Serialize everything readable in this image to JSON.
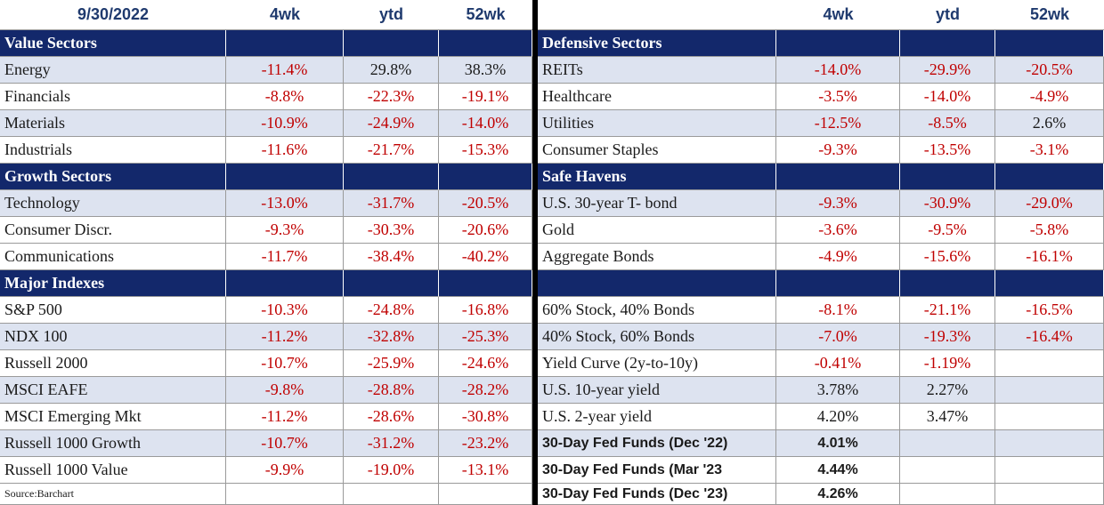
{
  "header": {
    "date": "9/30/2022",
    "left_cols": [
      "4wk",
      "ytd",
      "52wk"
    ],
    "right_cols": [
      "4wk",
      "ytd",
      "52wk"
    ]
  },
  "left": {
    "sections": [
      {
        "title": "Value Sectors",
        "rows": [
          {
            "label": "Energy",
            "wk4": "-11.4%",
            "ytd": "29.8%",
            "wk52": "38.3%"
          },
          {
            "label": "Financials",
            "wk4": "-8.8%",
            "ytd": "-22.3%",
            "wk52": "-19.1%"
          },
          {
            "label": "Materials",
            "wk4": "-10.9%",
            "ytd": "-24.9%",
            "wk52": "-14.0%"
          },
          {
            "label": "Industrials",
            "wk4": "-11.6%",
            "ytd": "-21.7%",
            "wk52": "-15.3%"
          }
        ]
      },
      {
        "title": "Growth Sectors",
        "rows": [
          {
            "label": "Technology",
            "wk4": "-13.0%",
            "ytd": "-31.7%",
            "wk52": "-20.5%"
          },
          {
            "label": "Consumer Discr.",
            "wk4": "-9.3%",
            "ytd": "-30.3%",
            "wk52": "-20.6%"
          },
          {
            "label": "Communications",
            "wk4": "-11.7%",
            "ytd": "-38.4%",
            "wk52": "-40.2%"
          }
        ]
      },
      {
        "title": "Major Indexes",
        "rows": [
          {
            "label": "S&P 500",
            "wk4": "-10.3%",
            "ytd": "-24.8%",
            "wk52": "-16.8%"
          },
          {
            "label": "NDX 100",
            "wk4": "-11.2%",
            "ytd": "-32.8%",
            "wk52": "-25.3%"
          },
          {
            "label": "Russell 2000",
            "wk4": "-10.7%",
            "ytd": "-25.9%",
            "wk52": "-24.6%"
          },
          {
            "label": "MSCI EAFE",
            "wk4": "-9.8%",
            "ytd": "-28.8%",
            "wk52": "-28.2%"
          },
          {
            "label": "MSCI Emerging Mkt",
            "wk4": "-11.2%",
            "ytd": "-28.6%",
            "wk52": "-30.8%"
          },
          {
            "label": "Russell 1000 Growth",
            "wk4": "-10.7%",
            "ytd": "-31.2%",
            "wk52": "-23.2%"
          },
          {
            "label": "Russell 1000 Value",
            "wk4": "-9.9%",
            "ytd": "-19.0%",
            "wk52": "-13.1%"
          }
        ]
      }
    ],
    "source": "Source:Barchart"
  },
  "right": {
    "sections": [
      {
        "title": "Defensive Sectors",
        "rows": [
          {
            "label": "REITs",
            "wk4": "-14.0%",
            "ytd": "-29.9%",
            "wk52": "-20.5%"
          },
          {
            "label": "Healthcare",
            "wk4": "-3.5%",
            "ytd": "-14.0%",
            "wk52": "-4.9%"
          },
          {
            "label": "Utilities",
            "wk4": "-12.5%",
            "ytd": "-8.5%",
            "wk52": "2.6%"
          },
          {
            "label": "Consumer Staples",
            "wk4": "-9.3%",
            "ytd": "-13.5%",
            "wk52": "-3.1%"
          }
        ]
      },
      {
        "title": "Safe Havens",
        "rows": [
          {
            "label": "U.S. 30-year T- bond",
            "wk4": "-9.3%",
            "ytd": "-30.9%",
            "wk52": "-29.0%"
          },
          {
            "label": "Gold",
            "wk4": "-3.6%",
            "ytd": "-9.5%",
            "wk52": "-5.8%"
          },
          {
            "label": "Aggregate Bonds",
            "wk4": "-4.9%",
            "ytd": "-15.6%",
            "wk52": "-16.1%"
          }
        ]
      },
      {
        "title": "",
        "rows": [
          {
            "label": "60% Stock, 40% Bonds",
            "wk4": "-8.1%",
            "ytd": "-21.1%",
            "wk52": "-16.5%"
          },
          {
            "label": "40% Stock, 60% Bonds",
            "wk4": "-7.0%",
            "ytd": "-19.3%",
            "wk52": "-16.4%"
          },
          {
            "label": "Yield Curve (2y-to-10y)",
            "wk4": "-0.41%",
            "ytd": "-1.19%",
            "wk52": ""
          },
          {
            "label": "U.S. 10-year yield",
            "wk4": "3.78%",
            "ytd": "2.27%",
            "wk52": ""
          },
          {
            "label": "U.S. 2-year yield",
            "wk4": "4.20%",
            "ytd": "3.47%",
            "wk52": ""
          },
          {
            "label": "30-Day Fed Funds (Dec '22)",
            "wk4": "4.01%",
            "ytd": "",
            "wk52": ""
          },
          {
            "label": "30-Day Fed Funds (Mar '23",
            "wk4": "4.44%",
            "ytd": "",
            "wk52": ""
          },
          {
            "label": "30-Day Fed Funds (Dec '23)",
            "wk4": "4.26%",
            "ytd": "",
            "wk52": ""
          }
        ]
      }
    ]
  },
  "colors": {
    "navy": "#13286b",
    "header_text": "#1f3a6e",
    "lavender": "#dde3f0",
    "negative": "#c00000"
  }
}
